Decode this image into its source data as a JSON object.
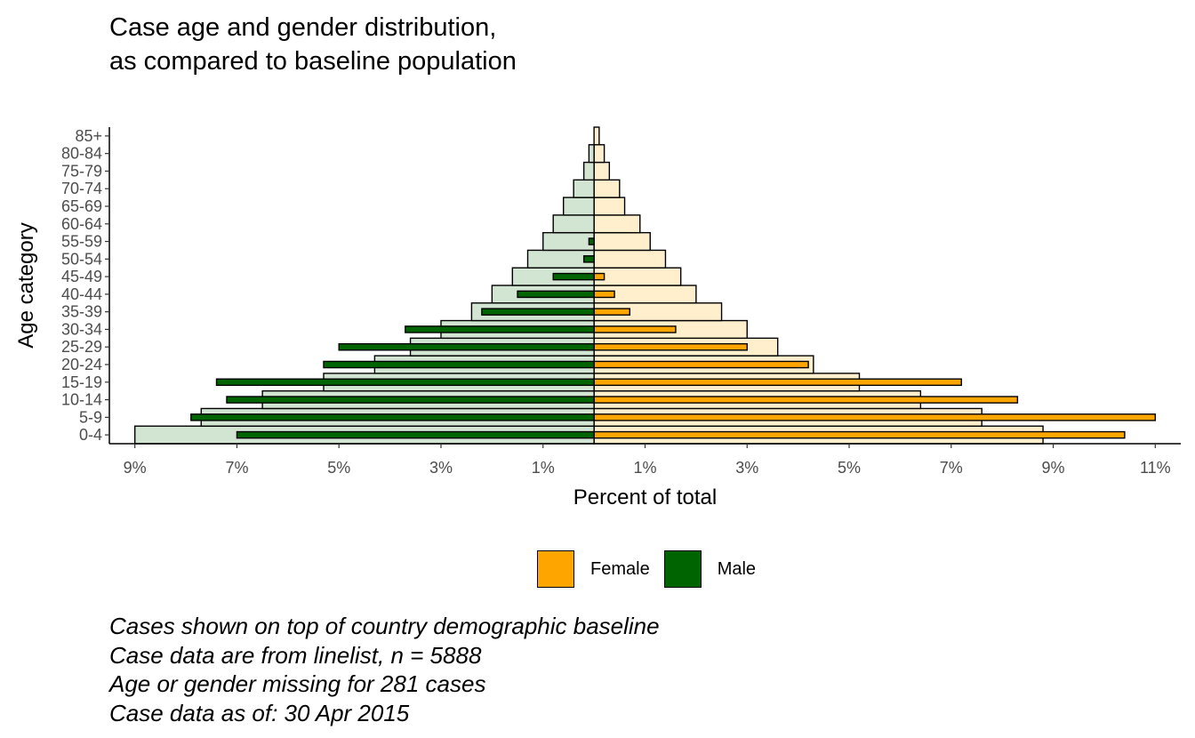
{
  "title_lines": [
    "Case age and gender distribution,",
    "as compared to baseline population"
  ],
  "caption_lines": [
    "Cases shown on top of country demographic baseline",
    "Case data are from linelist, n = 5888",
    "Age or gender missing for 281 cases",
    "Case data as of: 30 Apr 2015"
  ],
  "legend": [
    {
      "label": "Female",
      "color": "#FFA500"
    },
    {
      "label": "Male",
      "color": "#006400"
    }
  ],
  "colors": {
    "female_case": "#FFA500",
    "male_case": "#006400",
    "female_baseline": "#FFEFCC",
    "male_baseline": "#D2E4D2",
    "axis": "#000000",
    "tick_text": "#4D4D4D"
  },
  "chart_data": {
    "type": "bar",
    "orientation": "horizontal",
    "xlabel": "Percent of total",
    "ylabel": "Age category",
    "xlim": [
      -9.5,
      11.5
    ],
    "x_ticks": [
      -9,
      -7,
      -5,
      -3,
      -1,
      1,
      3,
      5,
      7,
      9,
      11
    ],
    "x_tick_labels": [
      "9%",
      "7%",
      "5%",
      "3%",
      "1%",
      "1%",
      "3%",
      "5%",
      "7%",
      "9%",
      "11%"
    ],
    "categories": [
      "0-4",
      "5-9",
      "10-14",
      "15-19",
      "20-24",
      "25-29",
      "30-34",
      "35-39",
      "40-44",
      "45-49",
      "50-54",
      "55-59",
      "60-64",
      "65-69",
      "70-74",
      "75-79",
      "80-84",
      "85+"
    ],
    "baseline": [
      {
        "name": "Female",
        "values": [
          8.8,
          7.6,
          6.4,
          5.2,
          4.3,
          3.6,
          3.0,
          2.5,
          2.0,
          1.7,
          1.4,
          1.1,
          0.9,
          0.6,
          0.5,
          0.3,
          0.2,
          0.1
        ]
      },
      {
        "name": "Male",
        "values": [
          9.0,
          7.7,
          6.5,
          5.3,
          4.3,
          3.6,
          3.0,
          2.4,
          2.0,
          1.6,
          1.3,
          1.0,
          0.8,
          0.6,
          0.4,
          0.2,
          0.1,
          0.0
        ]
      }
    ],
    "series": [
      {
        "name": "Female",
        "values": [
          10.4,
          11.0,
          8.3,
          7.2,
          4.2,
          3.0,
          1.6,
          0.7,
          0.4,
          0.2,
          0.0,
          0.0,
          0.0,
          0.0,
          0.0,
          0.0,
          0.0,
          0.0
        ]
      },
      {
        "name": "Male",
        "values": [
          7.0,
          7.9,
          7.2,
          7.4,
          5.3,
          5.0,
          3.7,
          2.2,
          1.5,
          0.8,
          0.2,
          0.1,
          0.0,
          0.0,
          0.0,
          0.0,
          0.0,
          0.0
        ]
      }
    ],
    "legend_position": "bottom"
  }
}
